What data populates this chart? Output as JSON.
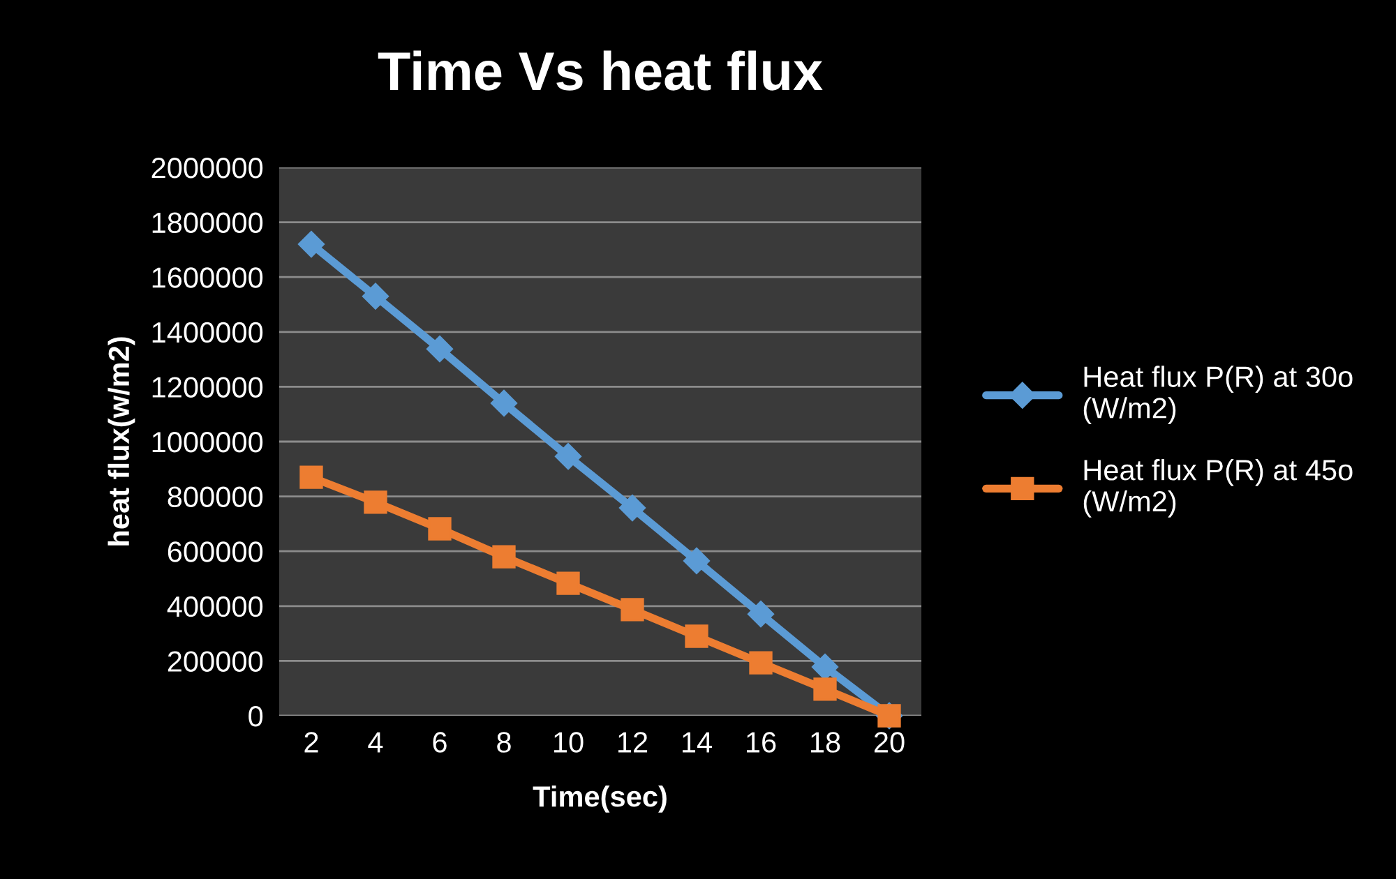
{
  "chart_data": {
    "type": "line",
    "title": "Time Vs heat flux",
    "xlabel": "Time(sec)",
    "ylabel": "heat flux(w/m2)",
    "categories": [
      "2",
      "4",
      "6",
      "8",
      "10",
      "12",
      "14",
      "16",
      "18",
      "20"
    ],
    "series": [
      {
        "name": "Heat flux P(R) at 30o (W/m2)",
        "color": "#5b9bd5",
        "marker": "diamond",
        "values": [
          1720000,
          1530000,
          1338000,
          1140000,
          946000,
          758000,
          565000,
          371000,
          178000,
          0
        ]
      },
      {
        "name": "Heat flux P(R) at 45o (W/m2)",
        "color": "#ed7d31",
        "marker": "square",
        "values": [
          870000,
          779000,
          682000,
          580000,
          483000,
          387000,
          290000,
          193000,
          97000,
          0
        ]
      }
    ],
    "ylim": [
      0,
      2000000
    ],
    "yticks": [
      0,
      200000,
      400000,
      600000,
      800000,
      1000000,
      1200000,
      1400000,
      1600000,
      1800000,
      2000000
    ],
    "grid": "y",
    "legend": "right"
  }
}
